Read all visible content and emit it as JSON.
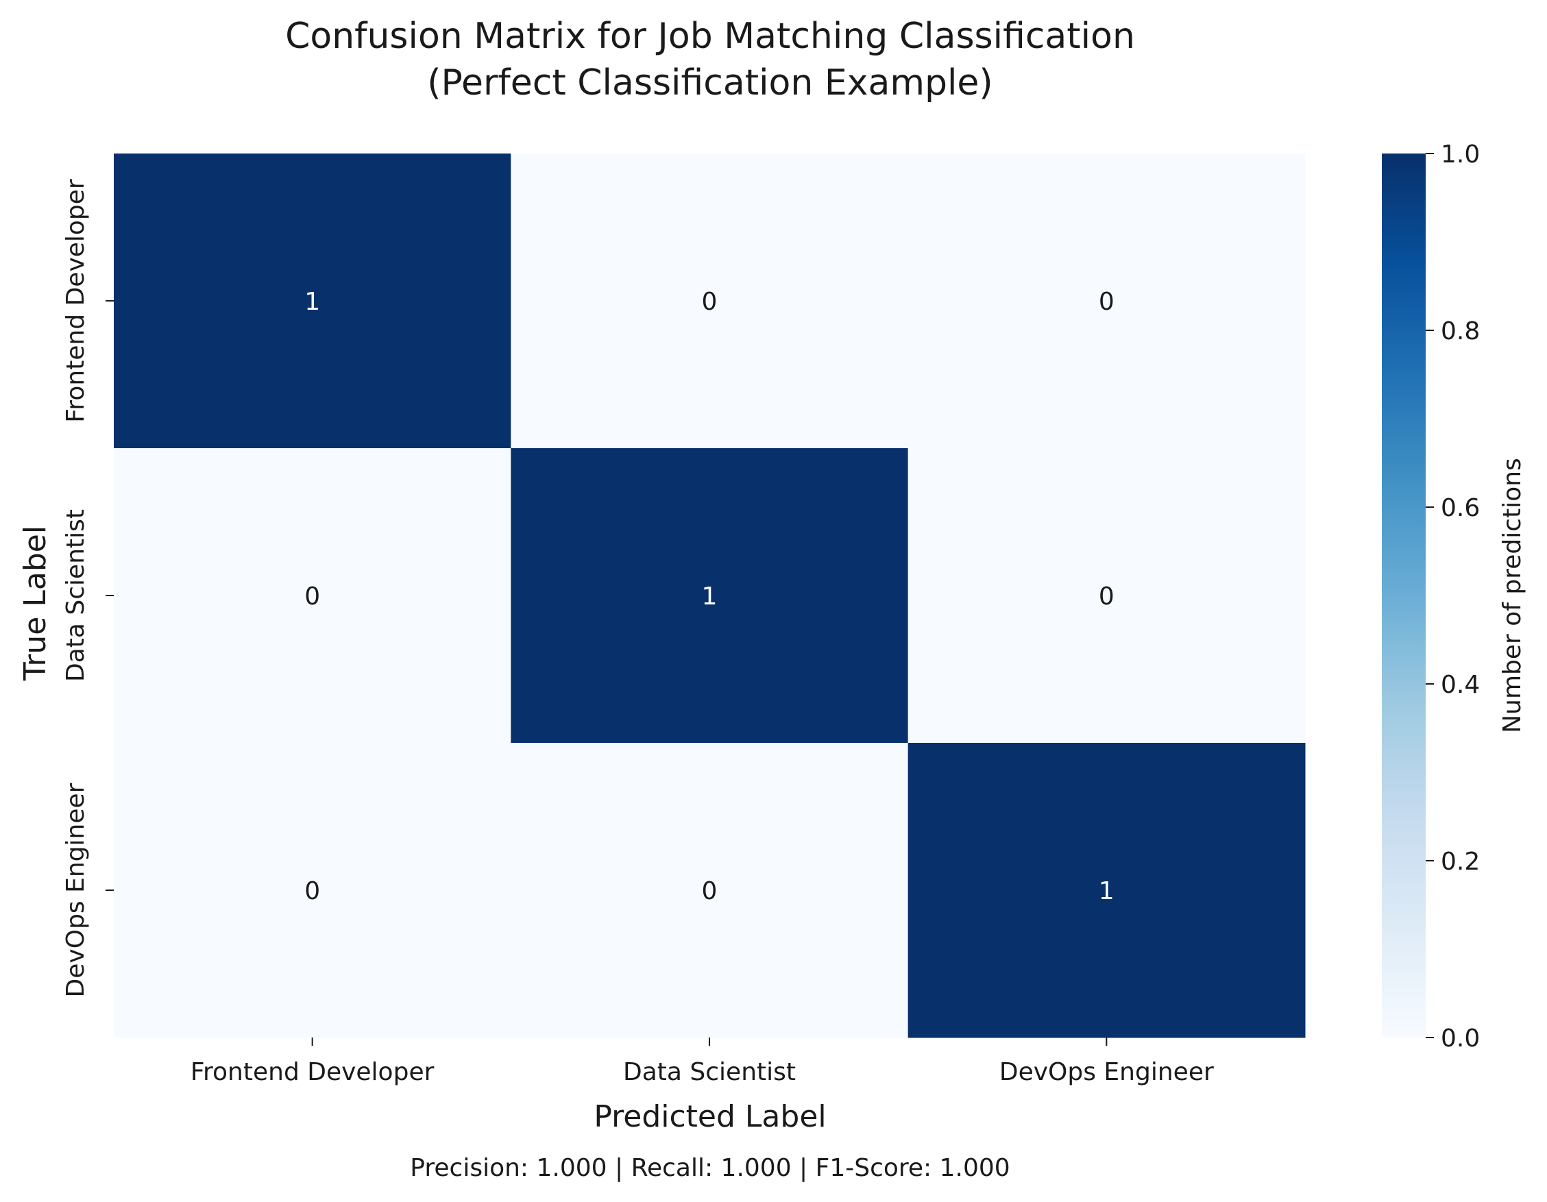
{
  "chart_data": {
    "type": "heatmap",
    "title_line1": "Confusion Matrix for Job Matching Classification",
    "title_line2": "(Perfect Classification Example)",
    "xlabel": "Predicted Label",
    "ylabel": "True Label",
    "x_categories": [
      "Frontend Developer",
      "Data Scientist",
      "DevOps Engineer"
    ],
    "y_categories": [
      "Frontend Developer",
      "Data Scientist",
      "DevOps Engineer"
    ],
    "matrix": [
      [
        1,
        0,
        0
      ],
      [
        0,
        1,
        0
      ],
      [
        0,
        0,
        1
      ]
    ],
    "colorbar": {
      "label": "Number of predictions",
      "range": [
        0.0,
        1.0
      ],
      "ticks": [
        "0.0",
        "0.2",
        "0.4",
        "0.6",
        "0.8",
        "1.0"
      ],
      "colormap": "Blues"
    },
    "footer": "Precision: 1.000 | Recall: 1.000 | F1-Score: 1.000"
  },
  "colors": {
    "high": "#08306b",
    "low": "#f7fbff",
    "text_on_high": "#ffffff",
    "text_on_low": "#1a1a1a"
  }
}
